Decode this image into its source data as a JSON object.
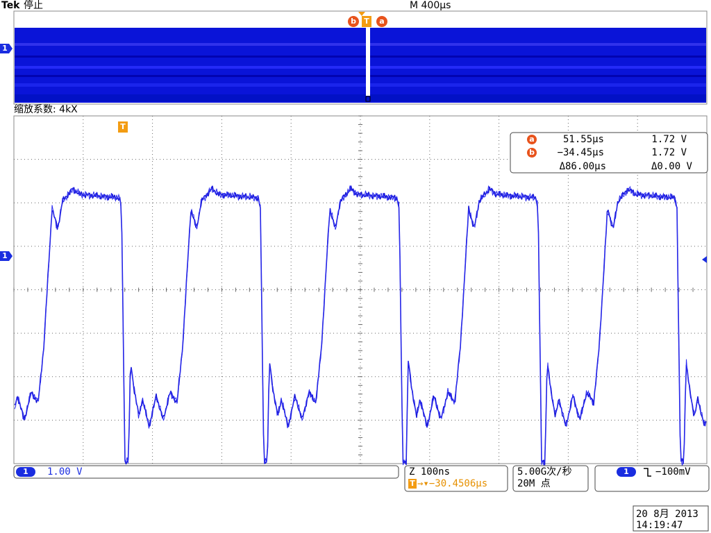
{
  "header": {
    "brand": "Tek",
    "status": "停止",
    "timebase": "M 400µs"
  },
  "zoom_label": "缩放系数: 4kX",
  "markers": {
    "cursor_a": "a",
    "cursor_b": "b",
    "trigger": "T",
    "channel": "1"
  },
  "cursor_readout": {
    "a": {
      "time": "51.55µs",
      "voltage": "1.72 V"
    },
    "b": {
      "time": "−34.45µs",
      "voltage": "1.72 V"
    },
    "delta": {
      "time": "Δ86.00µs",
      "voltage": "Δ0.00 V"
    }
  },
  "status_bar": {
    "channel_scale": "1.00 V",
    "zoom_scale": "Z 100ns",
    "trigger_position": "→▾−30.4506µs",
    "sample_rate": "5.00G次/秒",
    "record_length": "20M 点",
    "trigger_level": "−100mV"
  },
  "datetime": {
    "date": "20 8月  2013",
    "time": "14:19:47"
  }
}
